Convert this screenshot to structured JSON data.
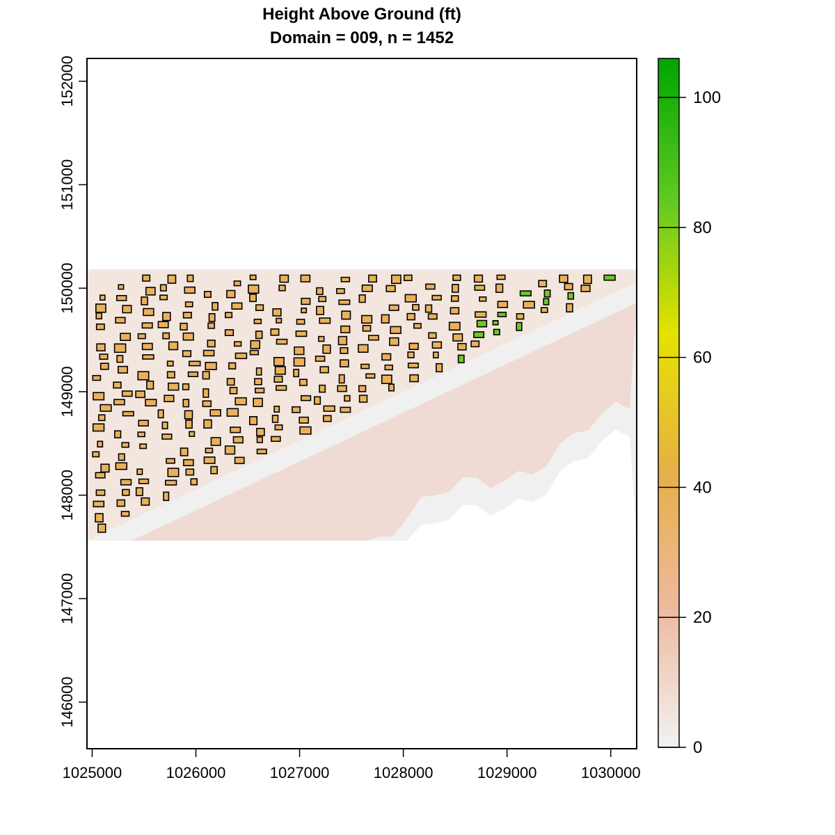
{
  "title": "Height Above Ground (ft)",
  "subtitle": "Domain = 009, n = 1452",
  "map": {
    "x_axis": {
      "range": [
        1024950,
        1030250
      ],
      "ticks": [
        1025000,
        1026000,
        1027000,
        1028000,
        1029000,
        1030000
      ]
    },
    "y_axis": {
      "range": [
        145550,
        152220
      ],
      "ticks": [
        146000,
        147000,
        148000,
        149000,
        150000,
        151000,
        152000
      ]
    },
    "data_extent": {
      "x": [
        1024950,
        1030250
      ],
      "y": [
        147560,
        150180
      ]
    },
    "shoreline_boundary": [
      [
        1024950,
        147560
      ],
      [
        1030250,
        150060
      ]
    ],
    "building_rows": 5,
    "building_count": 1452
  },
  "colorbar": {
    "range": [
      0,
      106
    ],
    "ticks": [
      0,
      20,
      40,
      60,
      80,
      100
    ],
    "ramp": [
      "#f2f2f2",
      "#eeb99f",
      "#e6b047",
      "#e5e200",
      "#5ec821",
      "#00a600"
    ]
  },
  "colors": {
    "ground": "#f1f0f0",
    "beach": "#efd6cf",
    "residential": "#e9b15c",
    "building_outline": "#000000",
    "tall_building": "#6fc724"
  }
}
